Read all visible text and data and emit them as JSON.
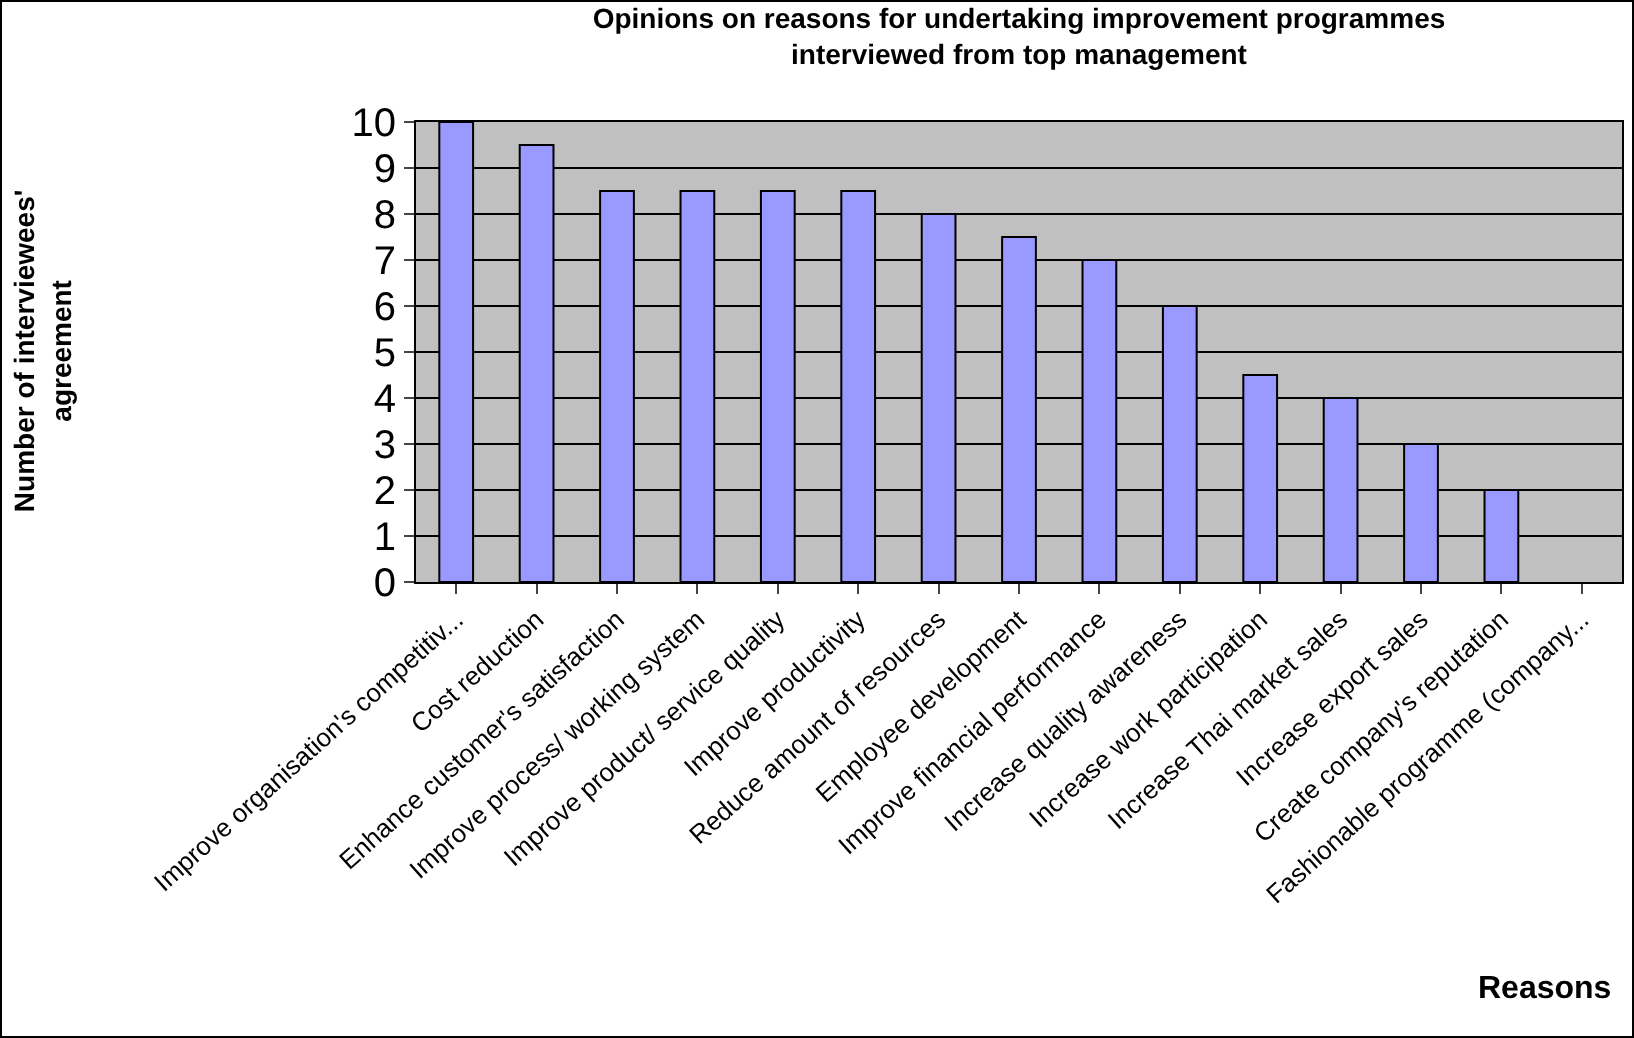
{
  "chart_data": {
    "type": "bar",
    "title": "Opinions on reasons for undertaking improvement programmes\ninterviewed from top management",
    "xlabel": "Reasons",
    "ylabel": "Number of interviewees'\nagreement",
    "categories": [
      "Improve organisation's competitiv...",
      "Cost reduction",
      "Enhance customer's satisfaction",
      "Improve process/ working system",
      "Improve product/ service quality",
      "Improve productivity",
      "Reduce amount of resources",
      "Employee development",
      "Improve financial performance",
      "Increase quality awareness",
      "Increase work participation",
      "Increase Thai market sales",
      "Increase export sales",
      "Create company's reputation",
      "Fashionable programme (company..."
    ],
    "values": [
      10,
      9.5,
      8.5,
      8.5,
      8.5,
      8.5,
      8,
      7.5,
      7,
      6,
      4.5,
      4,
      3,
      2,
      null
    ],
    "color": "#9999ff",
    "ylim": [
      0,
      10
    ],
    "yticks": [
      0,
      1,
      2,
      3,
      4,
      5,
      6,
      7,
      8,
      9,
      10
    ],
    "grid": "y",
    "legend": false
  }
}
